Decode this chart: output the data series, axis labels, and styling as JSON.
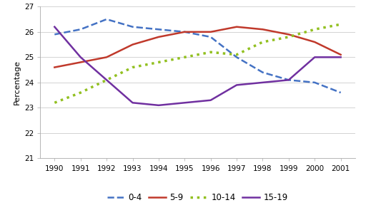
{
  "years": [
    1990,
    1991,
    1992,
    1993,
    1994,
    1995,
    1996,
    1997,
    1998,
    1999,
    2000,
    2001
  ],
  "series": {
    "0-4": [
      25.9,
      26.1,
      26.5,
      26.2,
      26.1,
      26.0,
      25.8,
      25.0,
      24.4,
      24.1,
      24.0,
      23.6
    ],
    "5-9": [
      24.6,
      24.8,
      25.0,
      25.5,
      25.8,
      26.0,
      26.0,
      26.2,
      26.1,
      25.9,
      25.6,
      25.1
    ],
    "10-14": [
      23.2,
      23.6,
      24.1,
      24.6,
      24.8,
      25.0,
      25.2,
      25.1,
      25.6,
      25.8,
      26.1,
      26.3
    ],
    "15-19": [
      26.2,
      25.0,
      24.1,
      23.2,
      23.1,
      23.2,
      23.3,
      23.9,
      24.0,
      24.1,
      25.0,
      25.0
    ]
  },
  "line_styles": {
    "0-4": {
      "color": "#4472C4",
      "linestyle": "--",
      "linewidth": 1.8
    },
    "5-9": {
      "color": "#C0392B",
      "linestyle": "-",
      "linewidth": 1.8
    },
    "10-14": {
      "color": "#92C020",
      "linestyle": ":",
      "linewidth": 2.5
    },
    "15-19": {
      "color": "#7030A0",
      "linestyle": "-",
      "linewidth": 1.8
    }
  },
  "ylabel": "Percentage",
  "ylim": [
    21,
    27
  ],
  "yticks": [
    21,
    22,
    23,
    24,
    25,
    26,
    27
  ],
  "background_color": "#ffffff",
  "legend_order": [
    "0-4",
    "5-9",
    "10-14",
    "15-19"
  ]
}
